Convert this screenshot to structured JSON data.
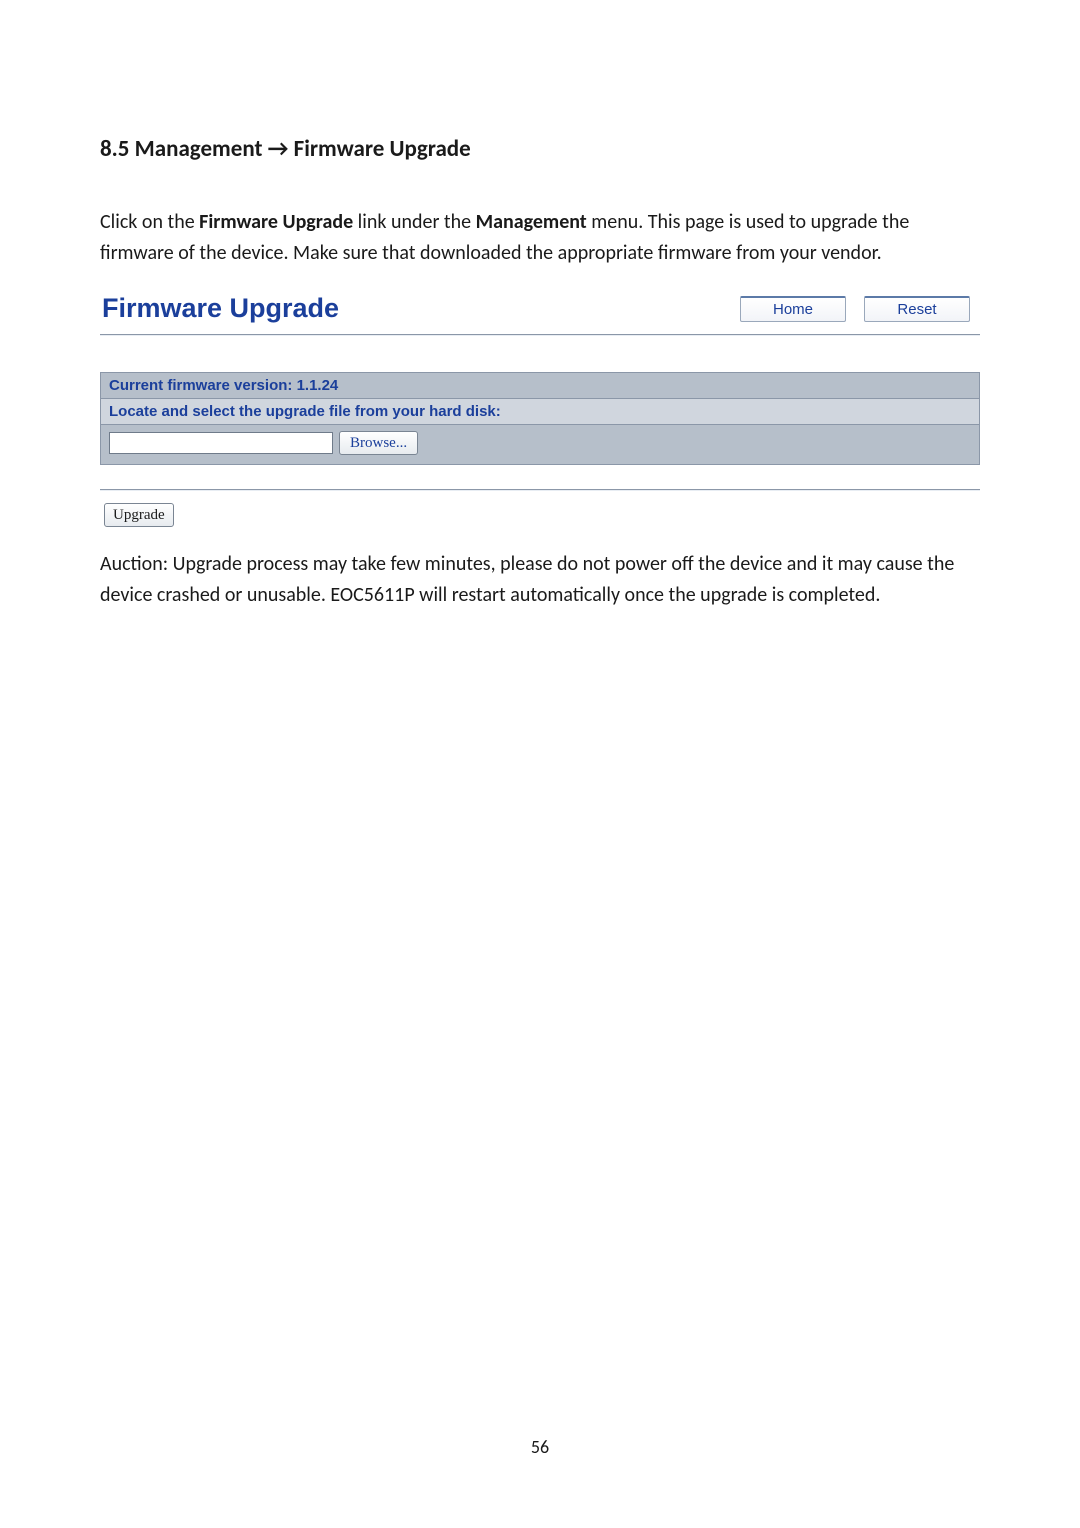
{
  "section": {
    "heading": "8.5 Management → Firmware Upgrade"
  },
  "intro": {
    "pre": "Click on the ",
    "link": "Firmware Upgrade",
    "mid": " link under the ",
    "menu": "Management",
    "post": " menu. This page is used to upgrade the firmware of the device. Make sure that downloaded the appropriate firmware from your vendor."
  },
  "ui": {
    "title": "Firmware Upgrade",
    "home_label": "Home",
    "reset_label": "Reset",
    "row_version_label": "Current firmware version: ",
    "row_version_value": "1.1.24",
    "row_locate": "Locate and select the upgrade file from your hard disk:",
    "browse_label": "Browse...",
    "upgrade_label": "Upgrade",
    "colors": {
      "title_color": "#1b3f9b",
      "row_bg_dark": "#b6bfca",
      "row_bg_light": "#d0d6de",
      "border": "#8b97a8"
    }
  },
  "caution": "Auction: Upgrade process may take few minutes, please do not power off the device and it may cause the device crashed or unusable. EOC5611P will restart automatically once the upgrade is completed.",
  "page_number": "56"
}
